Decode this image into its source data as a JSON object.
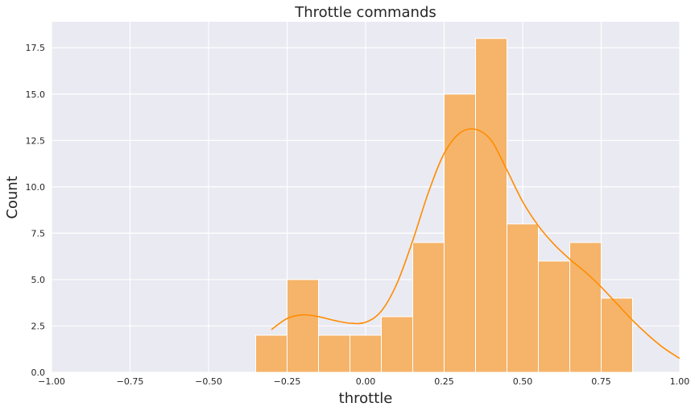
{
  "chart_data": {
    "type": "bar",
    "title": "Throttle commands",
    "xlabel": "throttle",
    "ylabel": "Count",
    "xlim": [
      -1.0,
      1.0
    ],
    "ylim": [
      0,
      18.9
    ],
    "grid": true,
    "x_ticks": [
      "-1.00",
      "-0.75",
      "-0.50",
      "-0.25",
      "0.00",
      "0.25",
      "0.50",
      "0.75",
      "1.00"
    ],
    "y_ticks": [
      "0.0",
      "2.5",
      "5.0",
      "7.5",
      "10.0",
      "12.5",
      "15.0",
      "17.5"
    ],
    "bar_color": "#f5b46a",
    "kde_color": "#ff8c00",
    "background_color": "#eaeaf2",
    "bins": [
      {
        "x0": -0.35,
        "x1": -0.25,
        "count": 2
      },
      {
        "x0": -0.25,
        "x1": -0.15,
        "count": 5
      },
      {
        "x0": -0.15,
        "x1": -0.05,
        "count": 2
      },
      {
        "x0": -0.05,
        "x1": 0.05,
        "count": 2
      },
      {
        "x0": 0.05,
        "x1": 0.15,
        "count": 3
      },
      {
        "x0": 0.15,
        "x1": 0.25,
        "count": 7
      },
      {
        "x0": 0.25,
        "x1": 0.35,
        "count": 15
      },
      {
        "x0": 0.35,
        "x1": 0.45,
        "count": 18
      },
      {
        "x0": 0.45,
        "x1": 0.55,
        "count": 8
      },
      {
        "x0": 0.55,
        "x1": 0.65,
        "count": 6
      },
      {
        "x0": 0.65,
        "x1": 0.75,
        "count": 7
      },
      {
        "x0": 0.75,
        "x1": 0.85,
        "count": 4
      }
    ],
    "kde": {
      "x": [
        -0.3,
        -0.25,
        -0.2,
        -0.15,
        -0.1,
        -0.05,
        0.0,
        0.05,
        0.1,
        0.15,
        0.2,
        0.25,
        0.3,
        0.35,
        0.4,
        0.45,
        0.5,
        0.55,
        0.6,
        0.65,
        0.7,
        0.75,
        0.8,
        0.85,
        0.9,
        0.95,
        1.0
      ],
      "y": [
        2.3,
        2.9,
        3.1,
        3.0,
        2.8,
        2.65,
        2.7,
        3.3,
        4.8,
        7.1,
        9.7,
        11.8,
        12.9,
        13.1,
        12.5,
        10.9,
        9.2,
        7.9,
        6.9,
        6.1,
        5.4,
        4.6,
        3.7,
        2.8,
        2.0,
        1.3,
        0.75
      ]
    }
  }
}
